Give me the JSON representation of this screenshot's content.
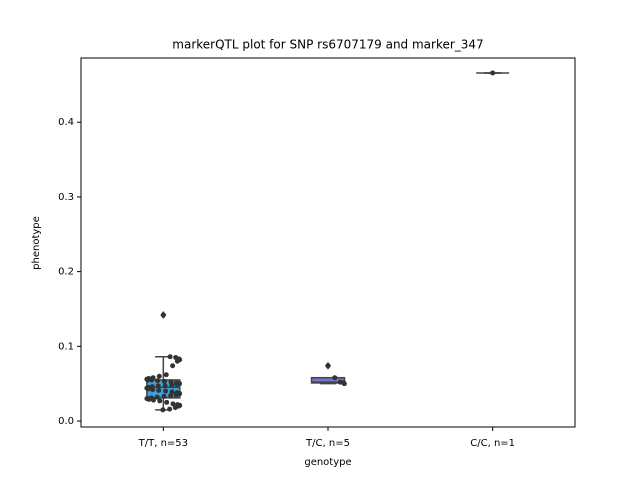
{
  "chart_data": {
    "type": "box",
    "title": "markerQTL plot for SNP rs6707179 and marker_347",
    "x_label": "genotype",
    "y_label": "phenotype",
    "categories": [
      "T/T, n=53",
      "T/C, n=5",
      "C/C, n=1"
    ],
    "boxes": [
      {
        "color": "#3ba3e0",
        "min": 0.015,
        "q1": 0.031,
        "median": 0.045,
        "q3": 0.055,
        "max": 0.086,
        "outliers": [
          0.142
        ]
      },
      {
        "color": "#7474d6",
        "min": 0.05,
        "q1": 0.051,
        "median": 0.052,
        "q3": 0.058,
        "max": 0.058,
        "outliers": [
          0.074
        ]
      },
      {
        "color": "#9a9ae0",
        "min": 0.466,
        "q1": 0.466,
        "median": 0.466,
        "q3": 0.466,
        "max": 0.466,
        "outliers": []
      }
    ],
    "points": [
      [
        0.142,
        0.086,
        0.085,
        0.083,
        0.082,
        0.08,
        0.074,
        0.062,
        0.06,
        0.058,
        0.057,
        0.056,
        0.055,
        0.055,
        0.054,
        0.053,
        0.052,
        0.051,
        0.05,
        0.05,
        0.049,
        0.048,
        0.047,
        0.047,
        0.046,
        0.045,
        0.044,
        0.043,
        0.042,
        0.041,
        0.04,
        0.039,
        0.038,
        0.037,
        0.036,
        0.035,
        0.034,
        0.033,
        0.032,
        0.031,
        0.03,
        0.03,
        0.029,
        0.028,
        0.027,
        0.025,
        0.023,
        0.022,
        0.021,
        0.02,
        0.018,
        0.016,
        0.015
      ],
      [
        0.074,
        0.058,
        0.052,
        0.051,
        0.05
      ],
      [
        0.466
      ]
    ],
    "point_color": "#333333",
    "ylim": [
      -0.008,
      0.486
    ],
    "yticks": [
      {
        "value": 0,
        "label": "0.0"
      },
      0.1,
      0.2,
      0.3,
      0.4
    ]
  }
}
